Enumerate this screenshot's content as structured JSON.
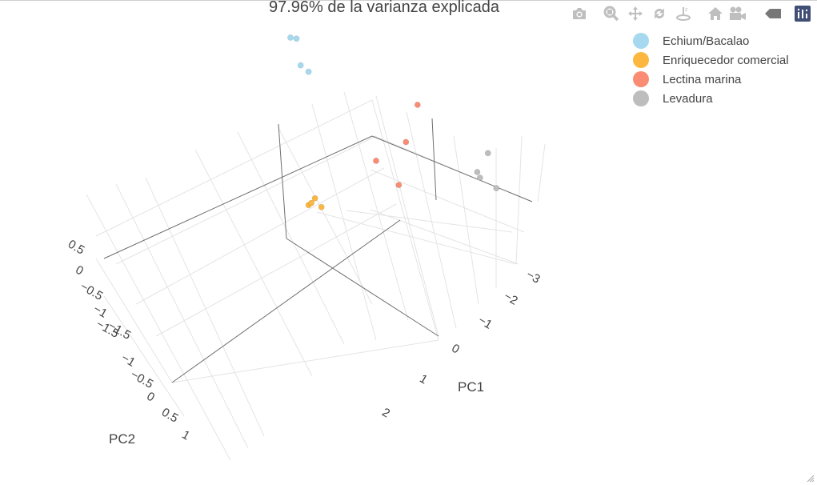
{
  "title": "97.96% de la varianza explicada",
  "modebar": {
    "icons": [
      "camera-icon",
      "zoom-icon",
      "pan-icon",
      "orbit-rotation-icon",
      "turntable-rotation-icon",
      "reset-camera-icon",
      "save-camera-icon",
      "hover-toggle-icon",
      "plotly-logo-icon"
    ]
  },
  "colors": {
    "Echium/Bacalao": "#a6d9ef",
    "Enriquecedor comercial": "#fcb740",
    "Lectina marina": "#fb8c74",
    "Levadura": "#bdbdbd"
  },
  "chart_data": {
    "type": "scatter3d",
    "title": "97.96% de la varianza explicada",
    "xlabel": "PC1",
    "ylabel": "PC2",
    "zlabel": "",
    "x_ticks": [
      "−3",
      "−2",
      "−1",
      "0",
      "1",
      "2"
    ],
    "y_ticks": [
      "−1.5",
      "−1",
      "−0.5",
      "0",
      "0.5",
      "1"
    ],
    "z_ticks": [
      "0.5",
      "0",
      "−0.5",
      "−1",
      "−1.5"
    ],
    "legend_position": "top-right",
    "series": [
      {
        "name": "Echium/Bacalao",
        "color": "#a6d9ef",
        "x": [
          -2.4,
          -2.3,
          -2.1,
          -2.1
        ],
        "y": [
          -1.7,
          -1.6,
          -1.5,
          -1.4
        ],
        "z": [
          0.9,
          0.9,
          0.6,
          0.5
        ]
      },
      {
        "name": "Enriquecedor comercial",
        "color": "#fcb740",
        "x": [
          1.4,
          1.5,
          1.6,
          1.7
        ],
        "y": [
          -0.6,
          -0.5,
          -0.4,
          -0.5
        ],
        "z": [
          -0.3,
          -0.2,
          -0.3,
          -0.2
        ]
      },
      {
        "name": "Lectina marina",
        "color": "#fb8c74",
        "x": [
          0.8,
          1.0,
          1.3,
          1.9
        ],
        "y": [
          0.6,
          0.5,
          0.2,
          0.6
        ],
        "z": [
          0.6,
          0.2,
          0.1,
          -0.1
        ]
      },
      {
        "name": "Levadura",
        "color": "#bdbdbd",
        "x": [
          -2.9,
          -2.7,
          -2.4,
          -2.4
        ],
        "y": [
          0.8,
          0.6,
          0.7,
          0.8
        ],
        "z": [
          -1.6,
          -1.3,
          -1.3,
          -1.0
        ]
      }
    ]
  }
}
